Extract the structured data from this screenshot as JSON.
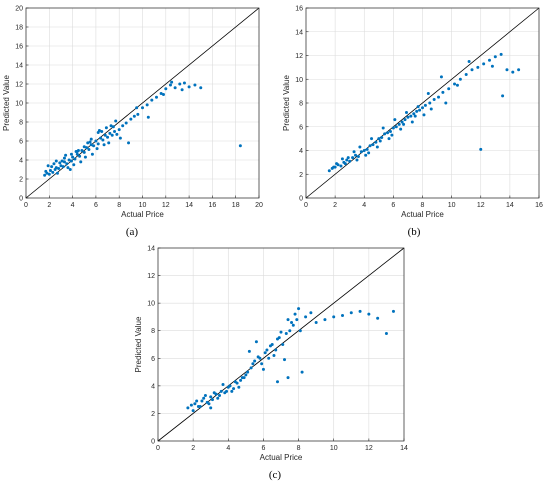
{
  "figure": {
    "panel_labels": [
      "(a)",
      "(b)",
      "(c)"
    ]
  },
  "colors": {
    "points": "#0072bd",
    "reference_line": "#000000",
    "grid": "#dcdcdc",
    "axes": "#262626"
  },
  "chart_data": [
    {
      "type": "scatter",
      "panel": "(a)",
      "xlabel": "Actual Price",
      "ylabel": "Predicted Value",
      "xlim": [
        0,
        20
      ],
      "ylim": [
        0,
        20
      ],
      "xticks": [
        0,
        2,
        4,
        6,
        8,
        10,
        12,
        14,
        16,
        18,
        20
      ],
      "yticks": [
        0,
        2,
        4,
        6,
        8,
        10,
        12,
        14,
        16,
        18,
        20
      ],
      "grid": true,
      "reference_line": "y = x",
      "series": [
        {
          "x": [
            1.6,
            1.8,
            2.0,
            2.1,
            2.3,
            2.5,
            2.6,
            2.8,
            3.0,
            3.2,
            3.3,
            3.5,
            3.7,
            3.9,
            4.0,
            4.2,
            4.4,
            4.6,
            4.8,
            5.0,
            5.2,
            5.4,
            5.6,
            5.8,
            6.0,
            6.2,
            6.4,
            6.6,
            6.8,
            7.0,
            7.2,
            7.4,
            7.6,
            7.8,
            8.0,
            8.3,
            8.6,
            9.0,
            9.3,
            9.6,
            10.0,
            10.4,
            10.8,
            11.2,
            11.6,
            12.0,
            12.4,
            12.8,
            13.2,
            13.6,
            14.0,
            14.5,
            15.0,
            1.7,
            2.2,
            2.7,
            3.1,
            3.6,
            4.1,
            4.5,
            5.1,
            5.5,
            6.1,
            6.5,
            7.1,
            7.5,
            8.1,
            8.8,
            9.5,
            2.4,
            3.4,
            4.3,
            5.3,
            6.3,
            7.3,
            2.9,
            3.8,
            4.7,
            5.7,
            6.7,
            1.9,
            2.6,
            3.3,
            3.9,
            4.4,
            5.0,
            5.6,
            6.2,
            6.9,
            7.7,
            10.5,
            11.8,
            12.5,
            13.4,
            18.4
          ],
          "y": [
            2.4,
            2.6,
            2.5,
            2.9,
            2.7,
            3.0,
            3.2,
            3.1,
            3.4,
            3.3,
            3.8,
            3.6,
            4.0,
            3.9,
            4.3,
            4.1,
            4.6,
            4.4,
            5.0,
            4.8,
            5.3,
            5.1,
            5.6,
            5.5,
            6.0,
            5.7,
            6.3,
            6.1,
            6.6,
            6.4,
            6.8,
            6.6,
            7.0,
            6.7,
            7.2,
            7.6,
            7.9,
            8.3,
            8.6,
            8.8,
            9.5,
            9.8,
            10.3,
            10.6,
            11.0,
            11.5,
            11.9,
            11.6,
            12.0,
            12.1,
            11.7,
            11.9,
            11.6,
            2.8,
            3.3,
            2.6,
            3.9,
            3.2,
            3.5,
            5.0,
            4.3,
            5.9,
            5.2,
            7.0,
            5.8,
            7.5,
            6.3,
            5.8,
            9.5,
            3.6,
            4.5,
            4.9,
            5.8,
            7.1,
            7.6,
            3.7,
            3.0,
            3.8,
            4.6,
            5.6,
            3.4,
            3.9,
            4.2,
            4.6,
            4.9,
            5.4,
            6.2,
            6.9,
            7.4,
            8.1,
            8.5,
            10.9,
            12.2,
            11.4,
            5.5
          ]
        }
      ]
    },
    {
      "type": "scatter",
      "panel": "(b)",
      "xlabel": "Actual Price",
      "ylabel": "Predicted Value",
      "xlim": [
        0,
        16
      ],
      "ylim": [
        0,
        16
      ],
      "xticks": [
        0,
        2,
        4,
        6,
        8,
        10,
        12,
        14,
        16
      ],
      "yticks": [
        0,
        2,
        4,
        6,
        8,
        10,
        12,
        14,
        16
      ],
      "grid": true,
      "reference_line": "y = x",
      "series": [
        {
          "x": [
            1.6,
            1.8,
            2.0,
            2.2,
            2.4,
            2.6,
            2.8,
            3.0,
            3.2,
            3.4,
            3.6,
            3.8,
            4.0,
            4.2,
            4.4,
            4.6,
            4.8,
            5.0,
            5.2,
            5.4,
            5.6,
            5.8,
            6.0,
            6.2,
            6.4,
            6.6,
            6.8,
            7.0,
            7.2,
            7.4,
            7.6,
            7.8,
            8.0,
            8.2,
            8.5,
            8.8,
            9.1,
            9.4,
            9.8,
            10.2,
            10.6,
            11.0,
            11.4,
            11.8,
            12.2,
            12.6,
            13.0,
            13.4,
            13.8,
            14.2,
            14.6,
            2.1,
            2.5,
            2.9,
            3.3,
            3.7,
            4.1,
            4.5,
            4.9,
            5.3,
            5.7,
            6.1,
            6.5,
            6.9,
            7.3,
            7.7,
            8.1,
            8.6,
            9.3,
            1.9,
            2.7,
            3.5,
            4.3,
            5.1,
            5.9,
            6.7,
            7.5,
            8.4,
            9.6,
            10.4,
            11.2,
            12.0,
            12.8,
            13.5
          ],
          "y": [
            2.3,
            2.5,
            2.6,
            2.8,
            2.7,
            3.0,
            3.2,
            3.1,
            3.4,
            3.6,
            3.5,
            3.9,
            4.0,
            4.1,
            4.4,
            4.5,
            4.7,
            5.0,
            5.1,
            5.4,
            5.5,
            5.6,
            5.9,
            6.0,
            6.2,
            6.4,
            6.6,
            6.8,
            6.9,
            7.1,
            7.3,
            7.4,
            7.6,
            7.8,
            8.0,
            8.3,
            8.5,
            8.9,
            9.2,
            9.6,
            10.0,
            10.4,
            10.8,
            11.0,
            11.3,
            11.6,
            11.9,
            12.1,
            10.8,
            10.6,
            10.8,
            2.9,
            3.3,
            3.4,
            3.9,
            4.3,
            3.6,
            5.0,
            4.3,
            5.9,
            5.0,
            6.6,
            5.8,
            7.2,
            6.4,
            7.7,
            7.0,
            7.5,
            10.2,
            2.6,
            2.9,
            3.2,
            3.8,
            4.8,
            5.3,
            6.2,
            6.9,
            8.8,
            8.0,
            9.5,
            11.5,
            4.1,
            11.1,
            8.6
          ]
        }
      ]
    },
    {
      "type": "scatter",
      "panel": "(c)",
      "xlabel": "Actual Price",
      "ylabel": "Predicted Value",
      "xlim": [
        0,
        14
      ],
      "ylim": [
        0,
        14
      ],
      "xticks": [
        0,
        2,
        4,
        6,
        8,
        10,
        12,
        14
      ],
      "yticks": [
        0,
        2,
        4,
        6,
        8,
        10,
        12,
        14
      ],
      "grid": true,
      "reference_line": "y = x",
      "series": [
        {
          "x": [
            1.7,
            1.9,
            2.1,
            2.3,
            2.5,
            2.6,
            2.8,
            3.0,
            3.1,
            3.3,
            3.5,
            3.6,
            3.8,
            4.0,
            4.1,
            4.3,
            4.5,
            4.7,
            4.9,
            5.1,
            5.3,
            5.5,
            5.7,
            5.9,
            6.1,
            6.3,
            6.5,
            6.7,
            6.9,
            7.1,
            7.3,
            7.5,
            7.7,
            7.9,
            8.1,
            8.4,
            8.7,
            9.0,
            9.5,
            10.0,
            10.5,
            11.0,
            11.5,
            12.0,
            12.5,
            13.0,
            13.4,
            2.2,
            2.7,
            3.2,
            3.7,
            4.2,
            4.8,
            5.2,
            5.6,
            6.0,
            6.4,
            6.8,
            7.2,
            7.6,
            8.0,
            2.4,
            2.9,
            3.4,
            3.9,
            4.4,
            5.0,
            5.4,
            5.8,
            6.2,
            6.6,
            7.0,
            7.4,
            7.8,
            2.0,
            3.0,
            4.6,
            6.8,
            7.4,
            8.2
          ],
          "y": [
            2.4,
            2.6,
            2.7,
            2.5,
            2.9,
            3.1,
            2.8,
            3.2,
            3.0,
            3.4,
            3.3,
            3.6,
            3.5,
            3.9,
            4.0,
            3.8,
            4.2,
            4.4,
            4.6,
            5.0,
            5.3,
            5.8,
            6.1,
            5.6,
            6.4,
            6.0,
            7.0,
            6.6,
            7.5,
            7.0,
            7.8,
            8.0,
            8.4,
            8.8,
            8.0,
            9.0,
            9.3,
            8.6,
            8.8,
            9.0,
            9.1,
            9.3,
            9.4,
            9.2,
            8.9,
            7.8,
            9.4,
            2.9,
            3.3,
            3.5,
            4.1,
            3.6,
            4.6,
            6.5,
            7.2,
            5.2,
            6.9,
            7.4,
            5.9,
            8.6,
            9.6,
            2.5,
            2.7,
            3.1,
            3.6,
            4.3,
            4.8,
            5.6,
            6.0,
            6.6,
            6.2,
            7.9,
            8.8,
            9.2,
            2.2,
            2.4,
            3.9,
            4.3,
            4.6,
            5.0
          ]
        }
      ]
    }
  ]
}
